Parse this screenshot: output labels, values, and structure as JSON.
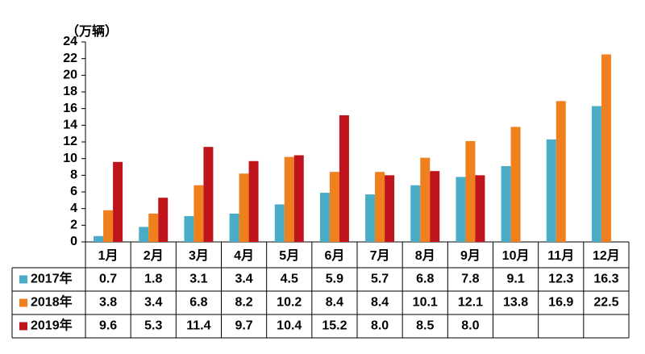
{
  "chart_data": {
    "type": "bar",
    "y_label": "（万辆）",
    "categories": [
      "1月",
      "2月",
      "3月",
      "4月",
      "5月",
      "6月",
      "7月",
      "8月",
      "9月",
      "10月",
      "11月",
      "12月"
    ],
    "series": [
      {
        "name": "2017年",
        "color": "#4bacc6",
        "values": [
          0.7,
          1.8,
          3.1,
          3.4,
          4.5,
          5.9,
          5.7,
          6.8,
          7.8,
          9.1,
          12.3,
          16.3
        ]
      },
      {
        "name": "2018年",
        "color": "#f07f1e",
        "values": [
          3.8,
          3.4,
          6.8,
          8.2,
          10.2,
          8.4,
          8.4,
          10.1,
          12.1,
          13.8,
          16.9,
          22.5
        ]
      },
      {
        "name": "2019年",
        "color": "#c0141c",
        "values": [
          9.6,
          5.3,
          11.4,
          9.7,
          10.4,
          15.2,
          8.0,
          8.5,
          8.0,
          null,
          null,
          null
        ],
        "value_labels": [
          "9.6",
          "5.3",
          "11.4",
          "9.7",
          "10.4",
          "15.2",
          "8.0",
          "8.5",
          "8.0",
          null,
          null,
          null
        ]
      }
    ],
    "ylim": [
      0,
      24
    ],
    "yticks": [
      0,
      2,
      4,
      6,
      8,
      10,
      12,
      14,
      16,
      18,
      20,
      22,
      24
    ]
  }
}
